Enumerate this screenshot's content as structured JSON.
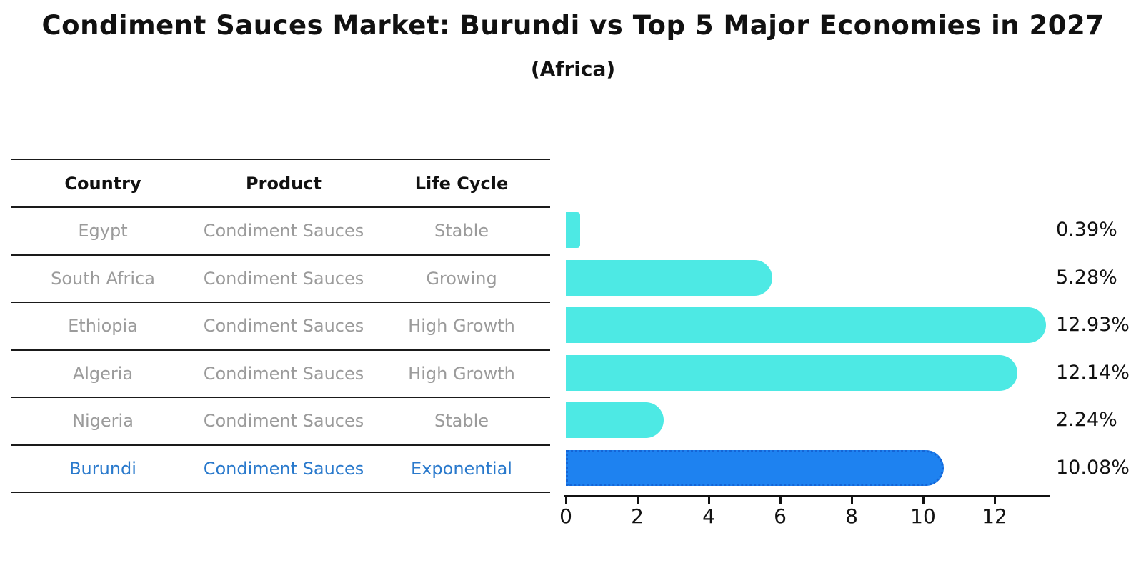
{
  "header": {
    "title": "Condiment Sauces Market: Burundi vs Top 5 Major Economies in 2027",
    "subtitle": "(Africa)"
  },
  "table": {
    "columns": [
      "Country",
      "Product",
      "Life Cycle"
    ],
    "rows": [
      {
        "country": "Egypt",
        "product": "Condiment Sauces",
        "life_cycle": "Stable",
        "highlight": false
      },
      {
        "country": "South Africa",
        "product": "Condiment Sauces",
        "life_cycle": "Growing",
        "highlight": false
      },
      {
        "country": "Ethiopia",
        "product": "Condiment Sauces",
        "life_cycle": "High Growth",
        "highlight": false
      },
      {
        "country": "Algeria",
        "product": "Condiment Sauces",
        "life_cycle": "High Growth",
        "highlight": false
      },
      {
        "country": "Nigeria",
        "product": "Condiment Sauces",
        "life_cycle": "Stable",
        "highlight": false
      },
      {
        "country": "Burundi",
        "product": "Condiment Sauces",
        "life_cycle": "Exponential",
        "highlight": true
      }
    ]
  },
  "chart_data": {
    "type": "bar",
    "orientation": "horizontal",
    "title": "Condiment Sauces Market: Burundi vs Top 5 Major Economies in 2027",
    "subtitle": "(Africa)",
    "categories": [
      "Egypt",
      "South Africa",
      "Ethiopia",
      "Algeria",
      "Nigeria",
      "Burundi"
    ],
    "values": [
      0.39,
      5.28,
      12.93,
      12.14,
      2.24,
      10.08
    ],
    "value_labels": [
      "0.39%",
      "5.28%",
      "12.93%",
      "12.14%",
      "2.24%",
      "10.08%"
    ],
    "x_ticks": [
      0,
      2,
      4,
      6,
      8,
      10,
      12
    ],
    "xlim": [
      0,
      13.6
    ],
    "highlight_index": 5,
    "grid": false,
    "legend": false,
    "colors": {
      "bar": "#4DE9E4",
      "highlight_bar": "#1E82F0",
      "highlight_bar_border": "#1565D6",
      "table_text_muted": "#9B9B9B",
      "highlight_text": "#2979CC",
      "axis": "#111111"
    }
  }
}
